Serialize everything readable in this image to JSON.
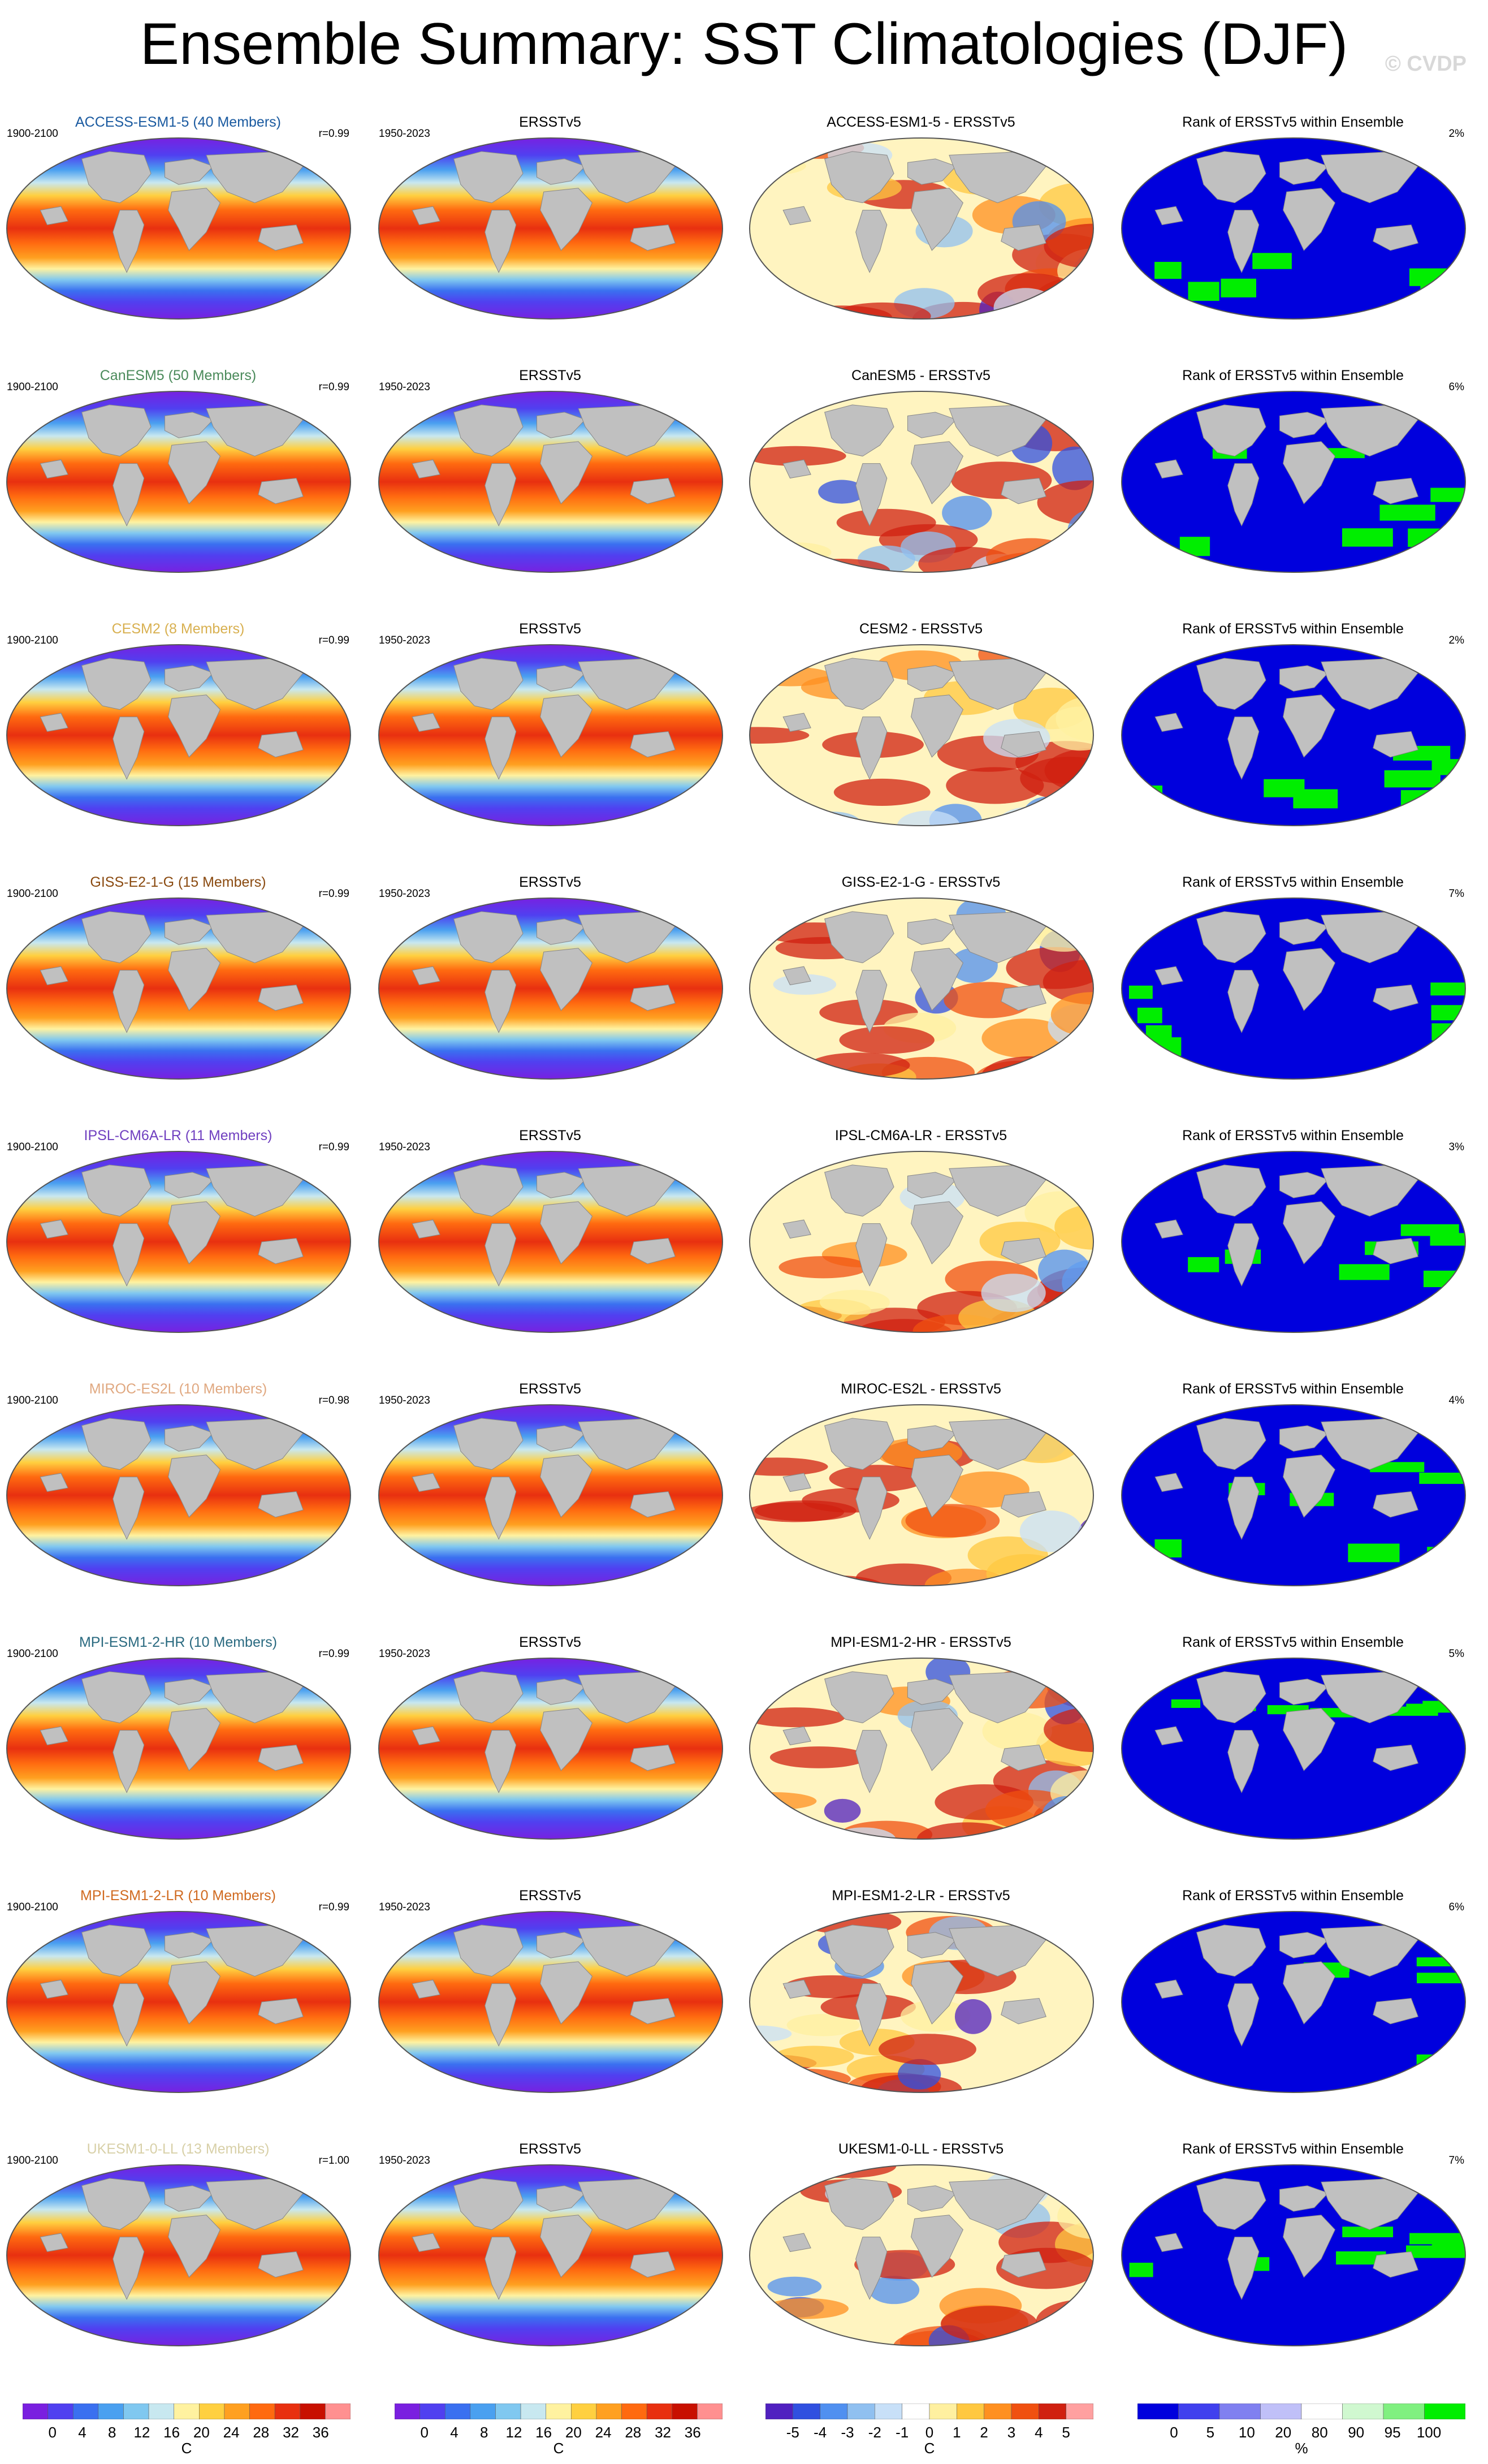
{
  "header": {
    "title": "Ensemble Summary: SST Climatologies (DJF)",
    "copyright": "© CVDP"
  },
  "colors": {
    "land": "#c0c0c0",
    "ocean_ramp": [
      "#7a1fe0",
      "#5040f0",
      "#3a70f0",
      "#4aa0f0",
      "#80c8f0",
      "#c8e8f0",
      "#fff2a0",
      "#ffd040",
      "#ffa020",
      "#ff6a10",
      "#e83010",
      "#c81000",
      "#ff9090"
    ],
    "diff_ramp": [
      "#5020c0",
      "#3050e0",
      "#5090f0",
      "#90c0f0",
      "#c8e0f8",
      "#ffffff",
      "#fff0a0",
      "#ffc840",
      "#ff9020",
      "#f05010",
      "#d02010",
      "#ffa0a0"
    ],
    "rank_low": "#0000dd",
    "rank_high": "#00ee00",
    "rank_mid": "#ffffff"
  },
  "chart_data": [
    {
      "type": "heatmap",
      "row": 1,
      "model": "ACCESS-ESM1-5 (40 Members)",
      "model_color": "#1a5aa0",
      "years": "1900-2100",
      "r": "r=0.99",
      "obs_title": "ERSSTv5",
      "obs_years": "1950-2023",
      "diff_title": "ACCESS-ESM1-5 - ERSSTv5",
      "rank_title": "Rank of ERSSTv5 within Ensemble",
      "rank_pct": "2%"
    },
    {
      "type": "heatmap",
      "row": 2,
      "model": "CanESM5 (50 Members)",
      "model_color": "#4a8a5a",
      "years": "1900-2100",
      "r": "r=0.99",
      "obs_title": "ERSSTv5",
      "obs_years": "1950-2023",
      "diff_title": "CanESM5 - ERSSTv5",
      "rank_title": "Rank of ERSSTv5 within Ensemble",
      "rank_pct": "6%"
    },
    {
      "type": "heatmap",
      "row": 3,
      "model": "CESM2 (8 Members)",
      "model_color": "#d8b050",
      "years": "1900-2100",
      "r": "r=0.99",
      "obs_title": "ERSSTv5",
      "obs_years": "1950-2023",
      "diff_title": "CESM2 - ERSSTv5",
      "rank_title": "Rank of ERSSTv5 within Ensemble",
      "rank_pct": "2%"
    },
    {
      "type": "heatmap",
      "row": 4,
      "model": "GISS-E2-1-G (15 Members)",
      "model_color": "#8a4a10",
      "years": "1900-2100",
      "r": "r=0.99",
      "obs_title": "ERSSTv5",
      "obs_years": "1950-2023",
      "diff_title": "GISS-E2-1-G - ERSSTv5",
      "rank_title": "Rank of ERSSTv5 within Ensemble",
      "rank_pct": "7%"
    },
    {
      "type": "heatmap",
      "row": 5,
      "model": "IPSL-CM6A-LR (11 Members)",
      "model_color": "#7040c0",
      "years": "1900-2100",
      "r": "r=0.99",
      "obs_title": "ERSSTv5",
      "obs_years": "1950-2023",
      "diff_title": "IPSL-CM6A-LR - ERSSTv5",
      "rank_title": "Rank of ERSSTv5 within Ensemble",
      "rank_pct": "3%"
    },
    {
      "type": "heatmap",
      "row": 6,
      "model": "MIROC-ES2L (10 Members)",
      "model_color": "#e0a880",
      "years": "1900-2100",
      "r": "r=0.98",
      "obs_title": "ERSSTv5",
      "obs_years": "1950-2023",
      "diff_title": "MIROC-ES2L - ERSSTv5",
      "rank_title": "Rank of ERSSTv5 within Ensemble",
      "rank_pct": "4%"
    },
    {
      "type": "heatmap",
      "row": 7,
      "model": "MPI-ESM1-2-HR (10 Members)",
      "model_color": "#2a6a80",
      "years": "1900-2100",
      "r": "r=0.99",
      "obs_title": "ERSSTv5",
      "obs_years": "1950-2023",
      "diff_title": "MPI-ESM1-2-HR - ERSSTv5",
      "rank_title": "Rank of ERSSTv5 within Ensemble",
      "rank_pct": "5%"
    },
    {
      "type": "heatmap",
      "row": 8,
      "model": "MPI-ESM1-2-LR (10 Members)",
      "model_color": "#d06a20",
      "years": "1900-2100",
      "r": "r=0.99",
      "obs_title": "ERSSTv5",
      "obs_years": "1950-2023",
      "diff_title": "MPI-ESM1-2-LR - ERSSTv5",
      "rank_title": "Rank of ERSSTv5 within Ensemble",
      "rank_pct": "6%"
    },
    {
      "type": "heatmap",
      "row": 9,
      "model": "UKESM1-0-LL (13 Members)",
      "model_color": "#d8d0a8",
      "years": "1900-2100",
      "r": "r=1.00",
      "obs_title": "ERSSTv5",
      "obs_years": "1950-2023",
      "diff_title": "UKESM1-0-LL - ERSSTv5",
      "rank_title": "Rank of ERSSTv5 within Ensemble",
      "rank_pct": "7%"
    }
  ],
  "colorbars": [
    {
      "ticks": [
        "0",
        "4",
        "8",
        "12",
        "16",
        "20",
        "24",
        "28",
        "32",
        "36"
      ],
      "unit": "C"
    },
    {
      "ticks": [
        "0",
        "4",
        "8",
        "12",
        "16",
        "20",
        "24",
        "28",
        "32",
        "36"
      ],
      "unit": "C"
    },
    {
      "ticks": [
        "-5",
        "-4",
        "-3",
        "-2",
        "-1",
        "0",
        "1",
        "2",
        "3",
        "4",
        "5"
      ],
      "unit": "C"
    },
    {
      "ticks": [
        "0",
        "5",
        "10",
        "20",
        "80",
        "90",
        "95",
        "100"
      ],
      "unit": "%"
    }
  ]
}
